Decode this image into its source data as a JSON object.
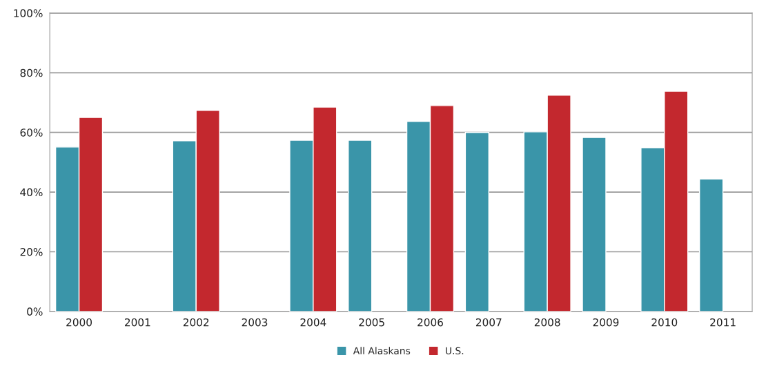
{
  "chart_data": {
    "type": "bar",
    "categories": [
      "2000",
      "2001",
      "2002",
      "2003",
      "2004",
      "2005",
      "2006",
      "2007",
      "2008",
      "2009",
      "2010",
      "2011"
    ],
    "series": [
      {
        "name": "All Alaskans",
        "color": "#3a95a9",
        "values": [
          55.1,
          null,
          57.2,
          null,
          57.4,
          57.4,
          63.7,
          60.0,
          60.2,
          58.3,
          54.9,
          44.4
        ]
      },
      {
        "name": "U.S.",
        "color": "#c3282e",
        "values": [
          65.0,
          null,
          67.4,
          null,
          68.5,
          null,
          69.0,
          null,
          72.5,
          null,
          73.8,
          null
        ]
      }
    ],
    "ylim": [
      0,
      100
    ],
    "yticks": [
      {
        "value": 0,
        "label": "0%"
      },
      {
        "value": 20,
        "label": "20%"
      },
      {
        "value": 40,
        "label": "40%"
      },
      {
        "value": 60,
        "label": "60%"
      },
      {
        "value": 80,
        "label": "80%"
      },
      {
        "value": 100,
        "label": "100%"
      }
    ],
    "grid": "y",
    "legend": "bottom"
  }
}
